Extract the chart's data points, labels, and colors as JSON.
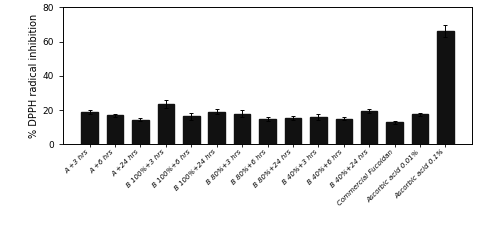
{
  "categories": [
    "A +3 hrs",
    "A +6 hrs",
    "A +24 hrs",
    "B 100%+3 hrs",
    "B 100%+6 hrs",
    "B 100%+24 hrs",
    "B 80%+3 hrs",
    "B 80%+6 hrs",
    "B 80%+24 hrs",
    "B 40%+3 hrs",
    "B 40%+6 hrs",
    "B 40%+24 hrs",
    "Commercial Fucoidan",
    "Ascorbic acid 0.01%",
    "Ascorbic acid 0.1%"
  ],
  "values": [
    19.0,
    17.0,
    14.5,
    23.5,
    16.5,
    19.0,
    18.0,
    15.0,
    15.5,
    16.0,
    15.0,
    19.5,
    13.0,
    17.5,
    66.5
  ],
  "errors": [
    1.0,
    1.0,
    0.8,
    2.5,
    2.0,
    1.5,
    2.0,
    1.2,
    1.0,
    1.5,
    1.0,
    1.2,
    0.8,
    1.0,
    3.5
  ],
  "bar_color": "#111111",
  "ylabel": "% DPPH radical inhibition",
  "ylim": [
    0,
    80
  ],
  "yticks": [
    0,
    20,
    40,
    60,
    80
  ],
  "background_color": "#ffffff",
  "label_fontsize": 5.0,
  "ylabel_fontsize": 7.0,
  "ytick_fontsize": 6.5
}
